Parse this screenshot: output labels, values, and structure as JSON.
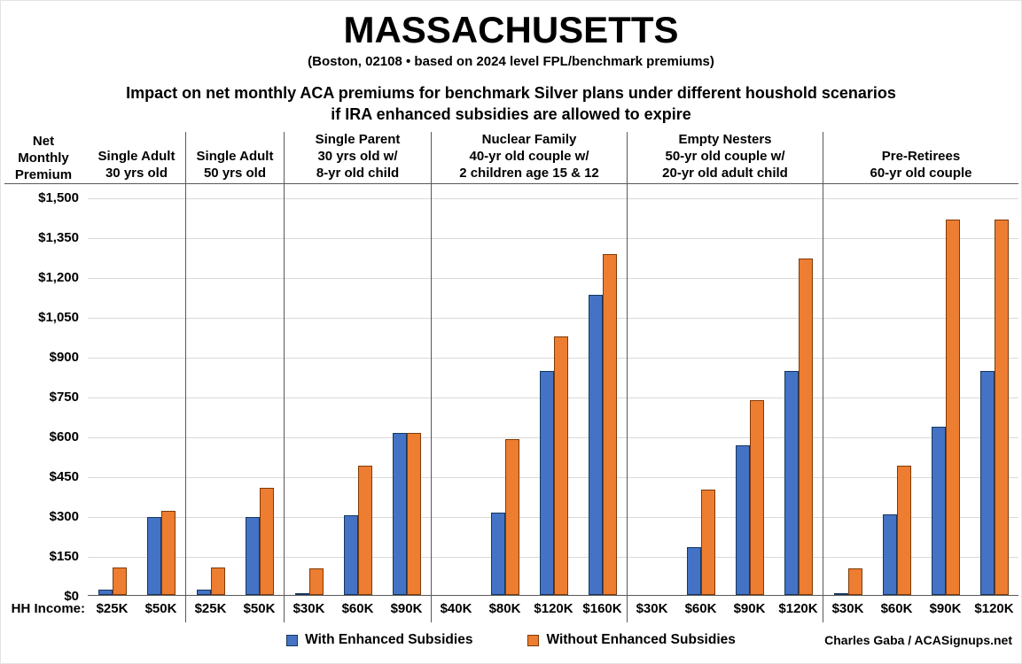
{
  "chart_data": {
    "type": "bar",
    "title": "MASSACHUSETTS",
    "subtitle": "(Boston, 02108 • based on 2024 level FPL/benchmark premiums)",
    "description": [
      "Impact on net monthly ACA premiums for benchmark Silver plans under different houshold scenarios",
      "if IRA enhanced subsidies are allowed to expire"
    ],
    "ylabel": "Net Monthly Premium",
    "ylabel_lines": [
      "Net",
      "Monthly",
      "Premium"
    ],
    "ylim": [
      0,
      1500
    ],
    "ytick_step": 150,
    "ytick_labels": [
      "$0",
      "$150",
      "$300",
      "$450",
      "$600",
      "$750",
      "$900",
      "$1,050",
      "$1,200",
      "$1,350",
      "$1,500"
    ],
    "xlabel_prefix": "HH Income:",
    "grid": true,
    "legend_position": "bottom",
    "legend": [
      {
        "name": "With Enhanced Subsidies",
        "color": "#4472C4"
      },
      {
        "name": "Without Enhanced Subsidies",
        "color": "#ED7D31"
      }
    ],
    "colors": {
      "with_fill": "#4472C4",
      "with_border": "#17375E",
      "without_fill": "#ED7D31",
      "without_border": "#7F3B08",
      "gridline": "#D9D9D9",
      "axis_line": "#595959"
    },
    "groups": [
      {
        "header": [
          "Single Adult",
          "30 yrs old"
        ],
        "categories": [
          "$25K",
          "$50K"
        ],
        "with_subsidies": [
          20,
          293
        ],
        "without_subsidies": [
          105,
          318
        ]
      },
      {
        "header": [
          "Single Adult",
          "50 yrs old"
        ],
        "categories": [
          "$25K",
          "$50K"
        ],
        "with_subsidies": [
          20,
          293
        ],
        "without_subsidies": [
          105,
          403
        ]
      },
      {
        "header": [
          "Single Parent",
          "30 yrs old w/",
          "8-yr old child"
        ],
        "categories": [
          "$30K",
          "$60K",
          "$90K"
        ],
        "with_subsidies": [
          5,
          300,
          610
        ],
        "without_subsidies": [
          100,
          487,
          610
        ]
      },
      {
        "header": [
          "Nuclear Family",
          "40-yr old couple w/",
          "2 children age 15 & 12"
        ],
        "categories": [
          "$40K",
          "$80K",
          "$120K",
          "$160K"
        ],
        "with_subsidies": [
          0,
          310,
          845,
          1130
        ],
        "without_subsidies": [
          0,
          587,
          975,
          1285
        ]
      },
      {
        "header": [
          "Empty Nesters",
          "50-yr old couple w/",
          "20-yr old adult child"
        ],
        "categories": [
          "$30K",
          "$60K",
          "$90K",
          "$120K"
        ],
        "with_subsidies": [
          0,
          180,
          562,
          845
        ],
        "without_subsidies": [
          0,
          398,
          735,
          1267
        ]
      },
      {
        "header": [
          "Pre-Retirees",
          "60-yr old couple"
        ],
        "categories": [
          "$30K",
          "$60K",
          "$90K",
          "$120K"
        ],
        "with_subsidies": [
          5,
          303,
          635,
          845
        ],
        "without_subsidies": [
          100,
          487,
          1415,
          1415
        ]
      }
    ],
    "credit": "Charles Gaba / ACASignups.net"
  }
}
